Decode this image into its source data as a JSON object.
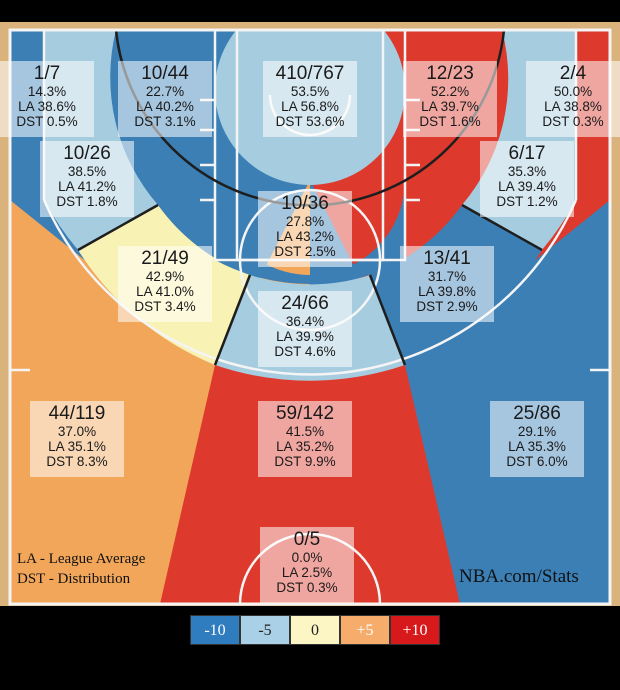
{
  "chart_data": {
    "type": "shot-chart",
    "zones": [
      {
        "id": "left-corner-3",
        "made": "1/7",
        "pct": "14.3%",
        "la": "LA 38.6%",
        "dst": "DST 0.5%",
        "diff": -24.3,
        "color": "#3b7fb5"
      },
      {
        "id": "left-wing-3",
        "made": "10/44",
        "pct": "22.7%",
        "la": "LA 40.2%",
        "dst": "DST 3.1%",
        "diff": -17.5,
        "color": "#3b7fb5"
      },
      {
        "id": "restricted-area",
        "made": "410/767",
        "pct": "53.5%",
        "la": "LA 56.8%",
        "dst": "DST 53.6%",
        "diff": -3.3,
        "color": "#a6cce0"
      },
      {
        "id": "right-wing-3",
        "made": "12/23",
        "pct": "52.2%",
        "la": "LA 39.7%",
        "dst": "DST 1.6%",
        "diff": 12.5,
        "color": "#dd3a2d"
      },
      {
        "id": "right-corner-3",
        "made": "2/4",
        "pct": "50.0%",
        "la": "LA 38.8%",
        "dst": "DST 0.3%",
        "diff": 11.2,
        "color": "#dd3a2d"
      },
      {
        "id": "left-baseline-mid",
        "made": "10/26",
        "pct": "38.5%",
        "la": "LA 41.2%",
        "dst": "DST 1.8%",
        "diff": -2.7,
        "color": "#a6cce0"
      },
      {
        "id": "paint",
        "made": "10/36",
        "pct": "27.8%",
        "la": "LA 43.2%",
        "dst": "DST 2.5%",
        "diff": -15.4,
        "color": "#3b7fb5"
      },
      {
        "id": "right-baseline-mid",
        "made": "6/17",
        "pct": "35.3%",
        "la": "LA 39.4%",
        "dst": "DST 1.2%",
        "diff": -4.1,
        "color": "#a6cce0"
      },
      {
        "id": "left-elbow-mid",
        "made": "21/49",
        "pct": "42.9%",
        "la": "LA 41.0%",
        "dst": "DST 3.4%",
        "diff": 1.9,
        "color": "#f8f2b4"
      },
      {
        "id": "right-elbow-mid",
        "made": "13/41",
        "pct": "31.7%",
        "la": "LA 39.8%",
        "dst": "DST 2.9%",
        "diff": -8.1,
        "color": "#3b7fb5"
      },
      {
        "id": "top-key-mid",
        "made": "24/66",
        "pct": "36.4%",
        "la": "LA 39.9%",
        "dst": "DST 4.6%",
        "diff": -3.5,
        "color": "#a6cce0"
      },
      {
        "id": "left-wing-above-break-3",
        "made": "44/119",
        "pct": "37.0%",
        "la": "LA 35.1%",
        "dst": "DST 8.3%",
        "diff": 1.9,
        "color": "#f2a65a"
      },
      {
        "id": "top-key-3",
        "made": "59/142",
        "pct": "41.5%",
        "la": "LA 35.2%",
        "dst": "DST 9.9%",
        "diff": 6.3,
        "color": "#dd3a2d"
      },
      {
        "id": "right-wing-above-break-3",
        "made": "25/86",
        "pct": "29.1%",
        "la": "LA 35.3%",
        "dst": "DST 6.0%",
        "diff": -6.2,
        "color": "#3b7fb5"
      },
      {
        "id": "backcourt",
        "made": "0/5",
        "pct": "0.0%",
        "la": "LA 2.5%",
        "dst": "DST 0.3%",
        "diff": -2.5,
        "color": "#dd3a2d"
      }
    ],
    "legend": [
      {
        "label": "-10",
        "color": "#2f7cbf"
      },
      {
        "label": "-5",
        "color": "#a9d0e6"
      },
      {
        "label": "0",
        "color": "#fbf6c3"
      },
      {
        "label": "+5",
        "color": "#f6ad6b"
      },
      {
        "label": "+10",
        "color": "#d7191c"
      }
    ]
  },
  "footnotes": [
    "LA - League Average",
    "DST - Distribution"
  ],
  "brand": "NBA.com/Stats",
  "court_color": "#d9b27c"
}
